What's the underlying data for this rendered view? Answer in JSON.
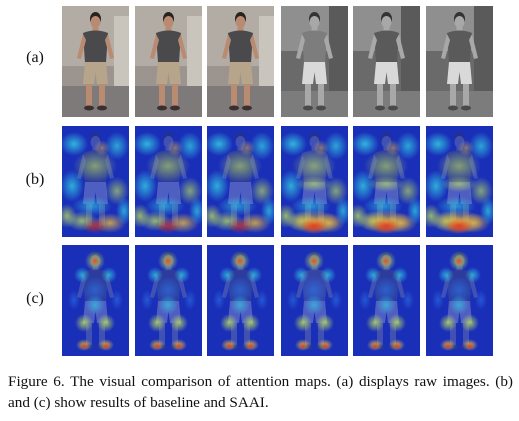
{
  "figure": {
    "rows": [
      {
        "label": "(a)",
        "kind": "raw"
      },
      {
        "label": "(b)",
        "kind": "baseline-attention"
      },
      {
        "label": "(c)",
        "kind": "saai-attention"
      }
    ],
    "columns": 6,
    "column_tones": [
      "color",
      "color",
      "color",
      "grayscale",
      "grayscale",
      "grayscale"
    ],
    "heatmap_colors": [
      "#1a2fb8",
      "#2f7ff0",
      "#35d6e6",
      "#c9ee55",
      "#f7c236",
      "#e0301e"
    ]
  },
  "caption": {
    "label": "Figure 6.",
    "text": "The visual comparison of attention maps. (a) displays raw images. (b) and (c) show results of baseline and SAAI."
  }
}
